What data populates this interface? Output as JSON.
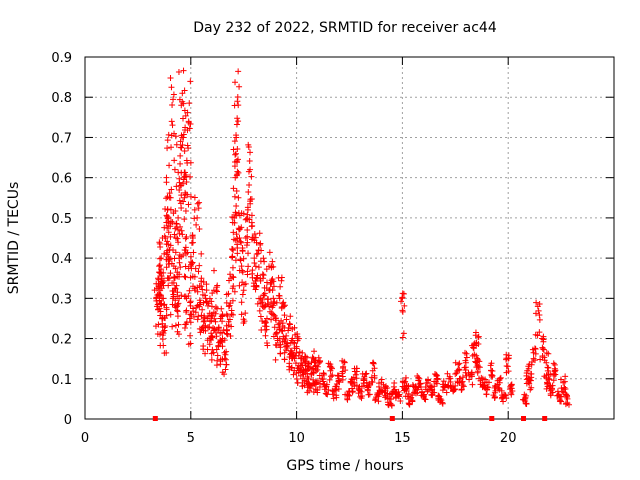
{
  "chart_data": {
    "type": "scatter",
    "title": "Day 232 of 2022, SRMTID for receiver ac44",
    "xlabel": "GPS time / hours",
    "ylabel": "SRMTID / TECUs",
    "xlim": [
      0,
      25
    ],
    "ylim": [
      0,
      0.9
    ],
    "x_ticks": [
      0,
      5,
      10,
      15,
      20
    ],
    "y_ticks": [
      0,
      0.1,
      0.2,
      0.3,
      0.4,
      0.5,
      0.6,
      0.7,
      0.8,
      0.9
    ],
    "grid": true,
    "marker": "+",
    "marker_color": "#ff0000",
    "series": [
      {
        "name": "SRMTID",
        "x": [
          3.4,
          3.45,
          3.5,
          3.55,
          3.6,
          3.65,
          3.7,
          3.75,
          3.8,
          3.85,
          3.9,
          3.95,
          4.0,
          4.05,
          4.1,
          4.15,
          4.2,
          4.25,
          4.3,
          4.35,
          4.4,
          4.45,
          4.5,
          4.55,
          4.6,
          4.65,
          4.7,
          4.75,
          4.8,
          4.85,
          4.9,
          4.95,
          5.0,
          5.1,
          5.2,
          5.3,
          5.4,
          5.5,
          5.6,
          5.7,
          5.8,
          5.9,
          6.0,
          6.1,
          6.2,
          6.3,
          6.4,
          6.5,
          6.6,
          6.7,
          6.8,
          6.9,
          7.0,
          7.05,
          7.1,
          7.15,
          7.2,
          7.25,
          7.3,
          7.4,
          7.5,
          7.6,
          7.7,
          7.8,
          7.9,
          8.0,
          8.1,
          8.2,
          8.3,
          8.4,
          8.5,
          8.6,
          8.7,
          8.8,
          8.9,
          9.0,
          9.1,
          9.2,
          9.3,
          9.4,
          9.5,
          9.6,
          9.7,
          9.8,
          9.9,
          10.0,
          10.1,
          10.2,
          10.3,
          10.4,
          10.5,
          10.6,
          10.7,
          10.8,
          10.9,
          11.0,
          11.2,
          11.4,
          11.6,
          11.8,
          12.0,
          12.2,
          12.4,
          12.6,
          12.8,
          13.0,
          13.2,
          13.4,
          13.6,
          13.8,
          14.0,
          14.2,
          14.4,
          14.6,
          14.8,
          15.0,
          15.1,
          15.2,
          15.4,
          15.6,
          15.8,
          16.0,
          16.2,
          16.4,
          16.6,
          16.8,
          17.0,
          17.2,
          17.4,
          17.6,
          17.8,
          18.0,
          18.2,
          18.4,
          18.5,
          18.6,
          18.8,
          19.0,
          19.2,
          19.4,
          19.6,
          19.8,
          20.0,
          20.1,
          20.8,
          20.9,
          21.0,
          21.2,
          21.4,
          21.6,
          21.8,
          21.9,
          22.0,
          22.2,
          22.4,
          22.6,
          22.8
        ],
        "y": [
          0.28,
          0.35,
          0.38,
          0.32,
          0.4,
          0.25,
          0.3,
          0.22,
          0.45,
          0.6,
          0.52,
          0.35,
          0.42,
          0.55,
          0.74,
          0.3,
          0.38,
          0.62,
          0.45,
          0.28,
          0.5,
          0.36,
          0.58,
          0.78,
          0.81,
          0.7,
          0.55,
          0.42,
          0.3,
          0.68,
          0.74,
          0.25,
          0.38,
          0.45,
          0.32,
          0.5,
          0.28,
          0.35,
          0.22,
          0.3,
          0.25,
          0.2,
          0.28,
          0.22,
          0.32,
          0.18,
          0.25,
          0.2,
          0.15,
          0.22,
          0.28,
          0.35,
          0.42,
          0.5,
          0.6,
          0.7,
          0.79,
          0.55,
          0.45,
          0.38,
          0.32,
          0.45,
          0.52,
          0.62,
          0.48,
          0.4,
          0.35,
          0.42,
          0.3,
          0.36,
          0.28,
          0.25,
          0.32,
          0.38,
          0.3,
          0.25,
          0.2,
          0.3,
          0.22,
          0.28,
          0.18,
          0.22,
          0.16,
          0.2,
          0.15,
          0.18,
          0.12,
          0.15,
          0.1,
          0.14,
          0.12,
          0.08,
          0.11,
          0.15,
          0.09,
          0.13,
          0.1,
          0.08,
          0.12,
          0.07,
          0.1,
          0.13,
          0.06,
          0.09,
          0.11,
          0.07,
          0.1,
          0.08,
          0.12,
          0.06,
          0.09,
          0.07,
          0.05,
          0.08,
          0.06,
          0.27,
          0.09,
          0.07,
          0.05,
          0.08,
          0.1,
          0.06,
          0.09,
          0.07,
          0.11,
          0.05,
          0.08,
          0.1,
          0.07,
          0.12,
          0.09,
          0.14,
          0.11,
          0.16,
          0.19,
          0.13,
          0.1,
          0.08,
          0.12,
          0.07,
          0.09,
          0.06,
          0.15,
          0.08,
          0.05,
          0.12,
          0.1,
          0.15,
          0.28,
          0.2,
          0.14,
          0.1,
          0.08,
          0.12,
          0.06,
          0.09,
          0.05
        ]
      }
    ]
  }
}
